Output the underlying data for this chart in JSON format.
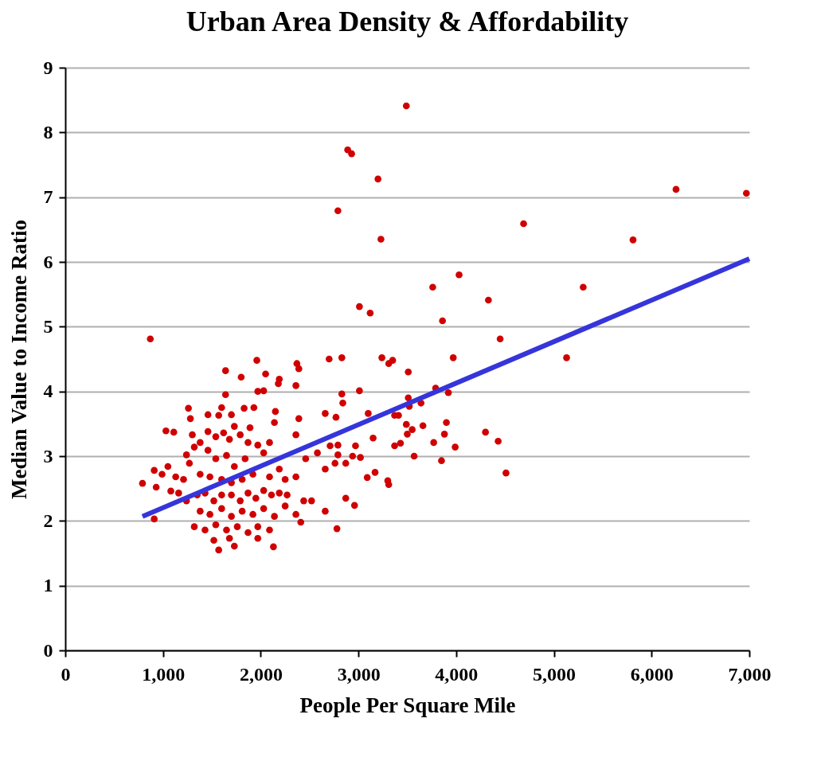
{
  "chart_data": {
    "type": "scatter",
    "title": "Urban Area Density & Affordability",
    "xlabel": "People Per Square Mile",
    "ylabel": "Median Value to Income Ratio",
    "xlim": [
      0,
      7000
    ],
    "ylim": [
      0,
      9
    ],
    "xticks": [
      0,
      {
        "value": 1000,
        "label": "1,000"
      },
      {
        "value": 2000,
        "label": "2,000"
      },
      {
        "value": 3000,
        "label": "3,000"
      },
      {
        "value": 4000,
        "label": "4,000"
      },
      {
        "value": 5000,
        "label": "5,000"
      },
      {
        "value": 6000,
        "label": "6,000"
      },
      {
        "value": 7000,
        "label": "7,000"
      }
    ],
    "yticks": [
      0,
      1,
      2,
      3,
      4,
      5,
      6,
      7,
      8,
      9
    ],
    "grid": "y",
    "marker": "circle",
    "series": [
      {
        "color": "#d00000",
        "x": [
          3490,
          2890,
          2930,
          3200,
          2790,
          3230,
          4690,
          6250,
          6970,
          5810,
          4030,
          3760,
          5300,
          4330,
          3010,
          3120,
          3860,
          4450,
          5130,
          2700,
          2830,
          3240,
          3350,
          3310,
          3510,
          3970,
          2830,
          2840,
          3010,
          3790,
          3920,
          3510,
          3640,
          3520,
          2660,
          2770,
          3100,
          3370,
          3410,
          3490,
          3660,
          3900,
          3500,
          3550,
          3880,
          4300,
          4430,
          3150,
          3370,
          3430,
          3770,
          3990,
          2710,
          2970,
          2790,
          2940,
          3020,
          2870,
          3570,
          3850,
          4510,
          3090,
          3170,
          3300,
          3310,
          2870,
          2960,
          870,
          1960,
          1640,
          1800,
          2050,
          2190,
          2180,
          2370,
          2390,
          2360,
          1970,
          2030,
          1640,
          1260,
          1600,
          1830,
          1930,
          2150,
          2140,
          2390,
          2360,
          1030,
          1110,
          1280,
          1460,
          1570,
          1700,
          1730,
          1890,
          910,
          1050,
          990,
          790,
          930,
          1080,
          1160,
          910,
          1130,
          1210,
          1270,
          1240,
          1320,
          1380,
          1300,
          1460,
          1540,
          1620,
          1680,
          1790,
          1870,
          1970,
          2090,
          2030,
          1460,
          1540,
          1650,
          1730,
          1840,
          1380,
          1480,
          1600,
          1700,
          1810,
          1920,
          2090,
          2190,
          2250,
          2360,
          1240,
          1350,
          1430,
          1520,
          1600,
          1700,
          1790,
          1870,
          1950,
          2030,
          2110,
          2190,
          2270,
          1380,
          1480,
          1600,
          1700,
          1810,
          1920,
          2030,
          2140,
          2250,
          1320,
          1430,
          1540,
          1650,
          1760,
          1870,
          1970,
          2090,
          1520,
          1680,
          1730,
          1970,
          1570,
          2130,
          2360,
          2410,
          2520,
          2660,
          2460,
          2580,
          2660,
          2760,
          2790,
          2780,
          2440
        ],
        "values": [
          8.41,
          7.73,
          7.67,
          7.28,
          6.79,
          6.35,
          6.59,
          7.12,
          7.06,
          6.34,
          5.8,
          5.61,
          5.61,
          5.41,
          5.31,
          5.21,
          5.09,
          4.81,
          4.52,
          4.5,
          4.52,
          4.52,
          4.48,
          4.43,
          4.3,
          4.52,
          3.96,
          3.82,
          4.01,
          4.05,
          3.98,
          3.9,
          3.82,
          3.77,
          3.66,
          3.6,
          3.66,
          3.63,
          3.63,
          3.49,
          3.47,
          3.52,
          3.34,
          3.41,
          3.34,
          3.37,
          3.23,
          3.28,
          3.16,
          3.2,
          3.21,
          3.14,
          3.16,
          3.16,
          3.02,
          3.0,
          2.98,
          2.89,
          3.0,
          2.93,
          2.74,
          2.67,
          2.75,
          2.62,
          2.56,
          2.35,
          2.24,
          4.81,
          4.48,
          4.32,
          4.22,
          4.27,
          4.19,
          4.12,
          4.43,
          4.35,
          4.09,
          4.0,
          4.01,
          3.95,
          3.74,
          3.75,
          3.74,
          3.75,
          3.69,
          3.52,
          3.58,
          3.33,
          3.39,
          3.37,
          3.58,
          3.64,
          3.63,
          3.64,
          3.46,
          3.44,
          2.78,
          2.84,
          2.72,
          2.58,
          2.52,
          2.46,
          2.43,
          2.03,
          2.68,
          2.64,
          2.89,
          3.02,
          3.14,
          3.21,
          3.33,
          3.38,
          3.3,
          3.36,
          3.26,
          3.33,
          3.21,
          3.17,
          3.21,
          3.05,
          3.09,
          2.96,
          3.01,
          2.84,
          2.96,
          2.72,
          2.68,
          2.64,
          2.59,
          2.64,
          2.72,
          2.68,
          2.8,
          2.64,
          2.68,
          2.31,
          2.4,
          2.43,
          2.31,
          2.4,
          2.4,
          2.31,
          2.43,
          2.35,
          2.47,
          2.4,
          2.43,
          2.4,
          2.15,
          2.1,
          2.19,
          2.07,
          2.15,
          2.1,
          2.19,
          2.07,
          2.23,
          1.91,
          1.86,
          1.94,
          1.86,
          1.91,
          1.82,
          1.91,
          1.86,
          1.7,
          1.73,
          1.61,
          1.73,
          1.55,
          1.6,
          2.1,
          1.98,
          2.31,
          2.15,
          2.96,
          3.05,
          2.8,
          2.89,
          3.17,
          1.88,
          2.31
        ]
      },
      {
        "type": "line",
        "marker": "none",
        "color": "#3535db",
        "x": [
          790,
          7000
        ],
        "values": [
          2.07,
          6.05
        ]
      }
    ]
  }
}
